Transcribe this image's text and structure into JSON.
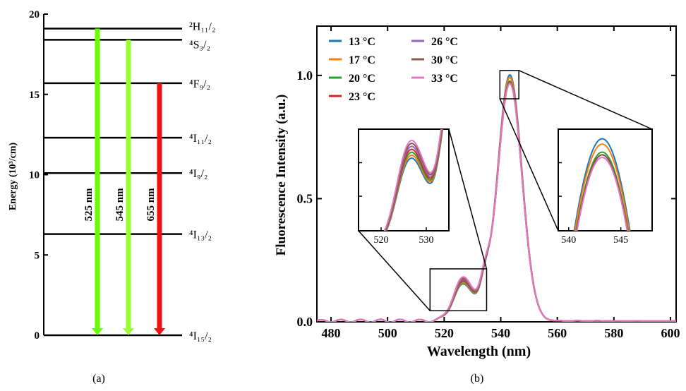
{
  "chart_data": [
    {
      "panel": "(a)",
      "type": "diagram",
      "ylabel": "Energy (10³/cm)",
      "ylim": [
        0,
        20
      ],
      "yticks": [
        "0",
        "5",
        "10",
        "15",
        "20"
      ],
      "levels": [
        {
          "label": "⁴I₁₅/₂",
          "energy": 0.0
        },
        {
          "label": "⁴I₁₃/₂",
          "energy": 6.3
        },
        {
          "label": "⁴I₉/₂",
          "energy": 10.1
        },
        {
          "label": "⁴I₁₁/₂",
          "energy": 12.3
        },
        {
          "label": "⁴F₉/₂",
          "energy": 15.7
        },
        {
          "label": "⁴S₃/₂",
          "energy": 18.4
        },
        {
          "label": "²H₁₁/₂",
          "energy": 19.1
        }
      ],
      "transitions": [
        {
          "label": "525 nm",
          "from": 19.1,
          "to": 0.0,
          "color": "#66ff00"
        },
        {
          "label": "545 nm",
          "from": 18.4,
          "to": 0.0,
          "color": "#99ff33"
        },
        {
          "label": "655 nm",
          "from": 15.7,
          "to": 0.0,
          "color": "#ee1111"
        }
      ]
    },
    {
      "panel": "(b)",
      "type": "line",
      "xlabel": "Wavelength (nm)",
      "ylabel": "Fluorescence Intensity (a.u.)",
      "xlim": [
        475,
        602
      ],
      "ylim": [
        0,
        1.2
      ],
      "xticks": [
        "480",
        "500",
        "520",
        "540",
        "560",
        "580",
        "600"
      ],
      "yticks": [
        "0.0",
        "0.5",
        "1.0"
      ],
      "legend_position": "top-left",
      "series": [
        {
          "name": "13 °C",
          "color": "#1f77b4",
          "green_peak": 0.16,
          "main_peak": 1.0
        },
        {
          "name": "17 °C",
          "color": "#ff7f0e",
          "green_peak": 0.165,
          "main_peak": 0.99
        },
        {
          "name": "20 °C",
          "color": "#2ca02c",
          "green_peak": 0.17,
          "main_peak": 0.975
        },
        {
          "name": "23 °C",
          "color": "#d62728",
          "green_peak": 0.175,
          "main_peak": 0.97
        },
        {
          "name": "26 °C",
          "color": "#9467bd",
          "green_peak": 0.18,
          "main_peak": 0.97
        },
        {
          "name": "30 °C",
          "color": "#8c564b",
          "green_peak": 0.185,
          "main_peak": 0.97
        },
        {
          "name": "33 °C",
          "color": "#e377c2",
          "green_peak": 0.19,
          "main_peak": 0.965
        }
      ],
      "insets": [
        {
          "xlim": [
            515,
            535
          ],
          "ylim": [
            0.04,
            0.2
          ],
          "xticks": [
            "520",
            "530"
          ]
        },
        {
          "xlim": [
            539,
            548
          ],
          "ylim": [
            0.83,
            1.02
          ],
          "xticks": [
            "540",
            "545"
          ]
        }
      ]
    }
  ],
  "captions": {
    "a": "(a)",
    "b": "(b)"
  }
}
